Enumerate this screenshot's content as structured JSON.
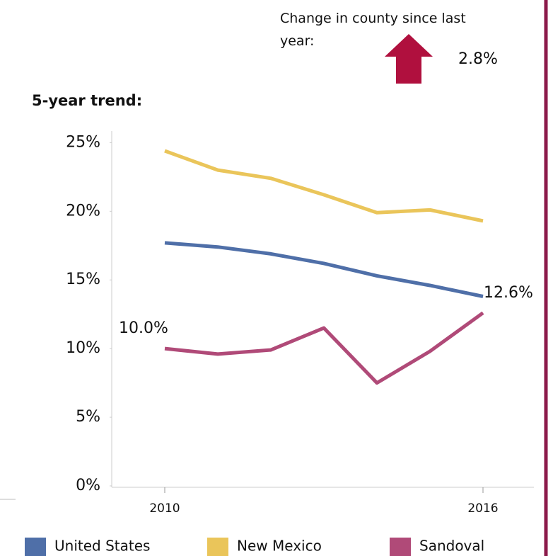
{
  "chart_data": {
    "type": "line",
    "change_label": "Change in county since last year:",
    "change_value": "2.8%",
    "title": "5-year trend:",
    "x": [
      2010,
      2011,
      2012,
      2013,
      2014,
      2015,
      2016
    ],
    "xlim": [
      2009,
      2017
    ],
    "xticks": [
      2010,
      2016
    ],
    "ylim": [
      0,
      26
    ],
    "yticks": [
      {
        "value": 0,
        "label": "0%"
      },
      {
        "value": 5,
        "label": "5%"
      },
      {
        "value": 10,
        "label": "10%"
      },
      {
        "value": 15,
        "label": "15%"
      },
      {
        "value": 20,
        "label": "20%"
      },
      {
        "value": 25,
        "label": "25%"
      }
    ],
    "grid": false,
    "legend": "bottom",
    "series": [
      {
        "name": "United States",
        "color": "#4f6fa8",
        "values": [
          17.7,
          17.4,
          16.9,
          16.2,
          15.3,
          14.6,
          13.8
        ]
      },
      {
        "name": "New Mexico",
        "color": "#eac55a",
        "values": [
          24.4,
          23.0,
          22.4,
          21.2,
          19.9,
          20.1,
          19.3
        ]
      },
      {
        "name": "Sandoval",
        "color": "#b04a78",
        "values": [
          10.0,
          9.6,
          9.9,
          11.5,
          7.5,
          9.8,
          12.6
        ],
        "value_labels": [
          "10.0%",
          null,
          null,
          null,
          null,
          null,
          "12.6%"
        ]
      }
    ]
  }
}
